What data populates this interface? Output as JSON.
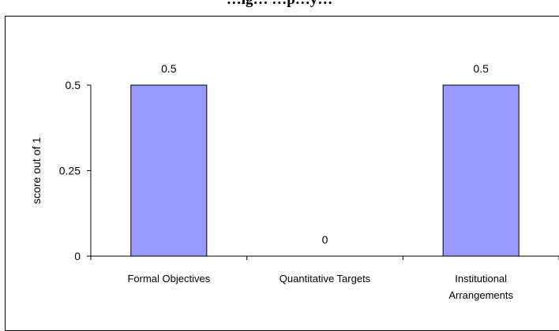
{
  "chart_data": {
    "type": "bar",
    "title": "…ig… …p…y…",
    "categories": [
      [
        "Formal Objectives"
      ],
      [
        "Quantitative Targets"
      ],
      [
        "Institutional",
        "Arrangements"
      ]
    ],
    "values": [
      0.5,
      0,
      0.5
    ],
    "data_labels": [
      "0.5",
      "0",
      "0.5"
    ],
    "ylabel": "score out of 1",
    "xlabel": "",
    "ylim": [
      0,
      0.5
    ],
    "yticks": [
      0,
      0.25,
      0.5
    ],
    "ytick_labels": [
      "0",
      "0.25",
      "0.5"
    ],
    "grid": false,
    "legend": "none",
    "colors": {
      "bar_fill": "#9999ff",
      "bar_stroke": "#000000",
      "axis": "#000000"
    }
  }
}
